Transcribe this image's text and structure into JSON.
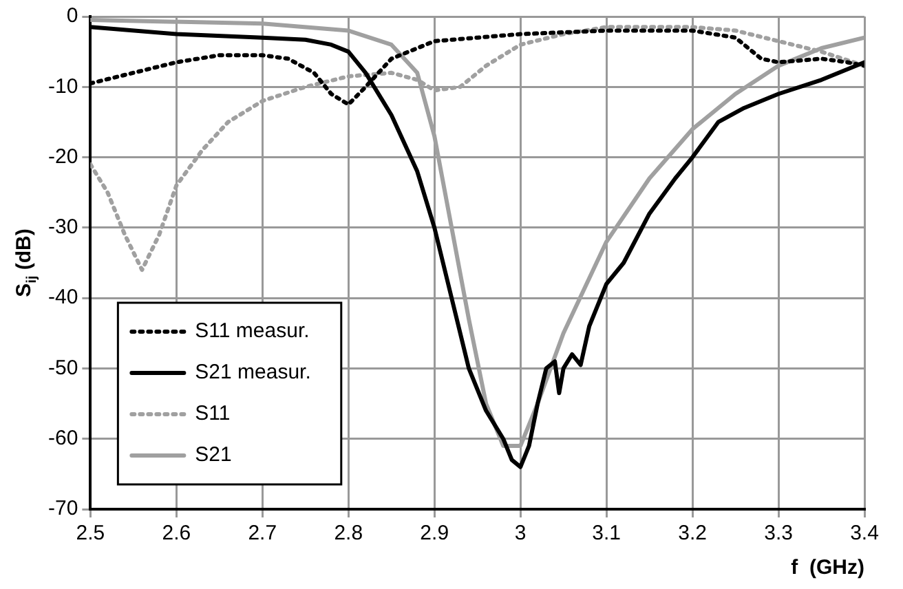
{
  "chart_data": {
    "type": "line",
    "xlabel": "f  (GHz)",
    "ylabel": "S$_{ij}$ (dB)",
    "xlim": [
      2.5,
      3.4
    ],
    "xticks": [
      2.5,
      2.6,
      2.7,
      2.8,
      2.9,
      3,
      3.1,
      3.2,
      3.3,
      3.4
    ],
    "ylim": [
      -70,
      0
    ],
    "yticks": [
      -70,
      -60,
      -50,
      -40,
      -30,
      -20,
      -10,
      0
    ],
    "grid": true,
    "legend": "bottom left",
    "marker": "none",
    "series": [
      {
        "name": "S11 measur.",
        "color": "#000000",
        "line_style": "dotted",
        "x": [
          2.5,
          2.55,
          2.6,
          2.65,
          2.7,
          2.73,
          2.76,
          2.78,
          2.8,
          2.82,
          2.85,
          2.9,
          2.95,
          3.0,
          3.1,
          3.2,
          3.25,
          3.28,
          3.3,
          3.35,
          3.38,
          3.4
        ],
        "values": [
          -9.5,
          -8,
          -6.5,
          -5.5,
          -5.5,
          -6,
          -8,
          -11,
          -12.5,
          -10,
          -6,
          -3.5,
          -3,
          -2.5,
          -2,
          -2,
          -3,
          -6,
          -6.5,
          -6,
          -6.5,
          -7
        ]
      },
      {
        "name": "S21 measur.",
        "color": "#000000",
        "line_style": "solid",
        "x": [
          2.5,
          2.6,
          2.7,
          2.75,
          2.78,
          2.8,
          2.82,
          2.85,
          2.88,
          2.9,
          2.92,
          2.94,
          2.96,
          2.98,
          2.99,
          3.0,
          3.01,
          3.02,
          3.03,
          3.04,
          3.045,
          3.05,
          3.06,
          3.07,
          3.08,
          3.1,
          3.12,
          3.15,
          3.18,
          3.2,
          3.23,
          3.26,
          3.3,
          3.35,
          3.4
        ],
        "values": [
          -1.5,
          -2.5,
          -3,
          -3.3,
          -4,
          -5,
          -8,
          -14,
          -22,
          -30,
          -40,
          -50,
          -56,
          -60,
          -63,
          -64,
          -61,
          -55,
          -50,
          -49,
          -53.5,
          -50,
          -48,
          -49.5,
          -44,
          -38,
          -35,
          -28,
          -23,
          -20,
          -15,
          -13,
          -11,
          -9,
          -6.5
        ]
      },
      {
        "name": "S11",
        "color": "#a0a0a0",
        "line_style": "dotted",
        "x": [
          2.5,
          2.52,
          2.54,
          2.56,
          2.58,
          2.6,
          2.63,
          2.66,
          2.7,
          2.75,
          2.8,
          2.85,
          2.88,
          2.9,
          2.93,
          2.96,
          3.0,
          3.05,
          3.1,
          3.2,
          3.25,
          3.3,
          3.35,
          3.4
        ],
        "values": [
          -21,
          -25,
          -31,
          -36,
          -31,
          -24,
          -19,
          -15,
          -12,
          -10,
          -8.5,
          -8,
          -9,
          -10.5,
          -10,
          -7,
          -4,
          -2.5,
          -1.5,
          -1.5,
          -2,
          -3.5,
          -5,
          -7
        ]
      },
      {
        "name": "S21",
        "color": "#a0a0a0",
        "line_style": "solid",
        "x": [
          2.5,
          2.7,
          2.8,
          2.85,
          2.88,
          2.9,
          2.92,
          2.94,
          2.96,
          2.98,
          3.0,
          3.02,
          3.05,
          3.1,
          3.15,
          3.2,
          3.25,
          3.3,
          3.35,
          3.4
        ],
        "values": [
          -0.5,
          -1,
          -2,
          -4,
          -8,
          -17,
          -30,
          -43,
          -55,
          -61,
          -61,
          -55,
          -45,
          -32,
          -23,
          -16,
          -11,
          -7,
          -4.5,
          -3
        ]
      }
    ]
  }
}
